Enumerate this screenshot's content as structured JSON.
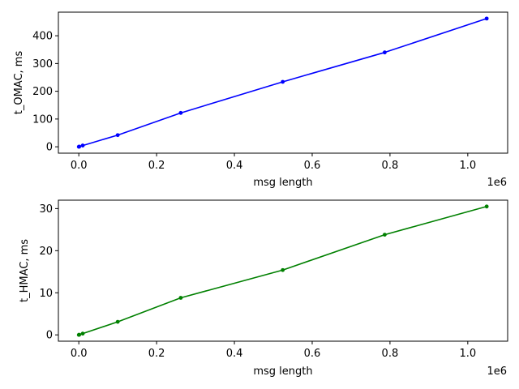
{
  "chart_data": [
    {
      "type": "line",
      "xlabel": "msg length",
      "ylabel": "t_OMAC, ms",
      "x_offset_label": "1e6",
      "xlim": [
        -0.0525,
        1.1025
      ],
      "ylim": [
        -23,
        485
      ],
      "x_ticks": [
        0.0,
        0.2,
        0.4,
        0.6,
        0.8,
        1.0
      ],
      "x_tick_labels": [
        "0.0",
        "0.2",
        "0.4",
        "0.6",
        "0.8",
        "1.0"
      ],
      "y_ticks": [
        0,
        100,
        200,
        300,
        400
      ],
      "y_tick_labels": [
        "0",
        "100",
        "200",
        "300",
        "400"
      ],
      "grid": false,
      "series": [
        {
          "color": "#0000ff",
          "marker": "dot",
          "x": [
            0.0001,
            0.001,
            0.01,
            0.1,
            0.2621,
            0.5243,
            0.7864,
            1.0486
          ],
          "y": [
            0.1,
            0.5,
            4.5,
            42,
            122,
            234,
            340,
            462
          ]
        }
      ]
    },
    {
      "type": "line",
      "xlabel": "msg length",
      "ylabel": "t_HMAC, ms",
      "x_offset_label": "1e6",
      "xlim": [
        -0.0525,
        1.1025
      ],
      "ylim": [
        -1.5,
        32
      ],
      "x_ticks": [
        0.0,
        0.2,
        0.4,
        0.6,
        0.8,
        1.0
      ],
      "x_tick_labels": [
        "0.0",
        "0.2",
        "0.4",
        "0.6",
        "0.8",
        "1.0"
      ],
      "y_ticks": [
        0,
        10,
        20,
        30
      ],
      "y_tick_labels": [
        "0",
        "10",
        "20",
        "30"
      ],
      "grid": false,
      "series": [
        {
          "color": "#008000",
          "marker": "dot",
          "x": [
            0.0001,
            0.001,
            0.01,
            0.1,
            0.2621,
            0.5243,
            0.7864,
            1.0486
          ],
          "y": [
            0.0,
            0.02,
            0.3,
            3.1,
            8.8,
            15.4,
            23.8,
            30.5
          ]
        }
      ]
    }
  ]
}
